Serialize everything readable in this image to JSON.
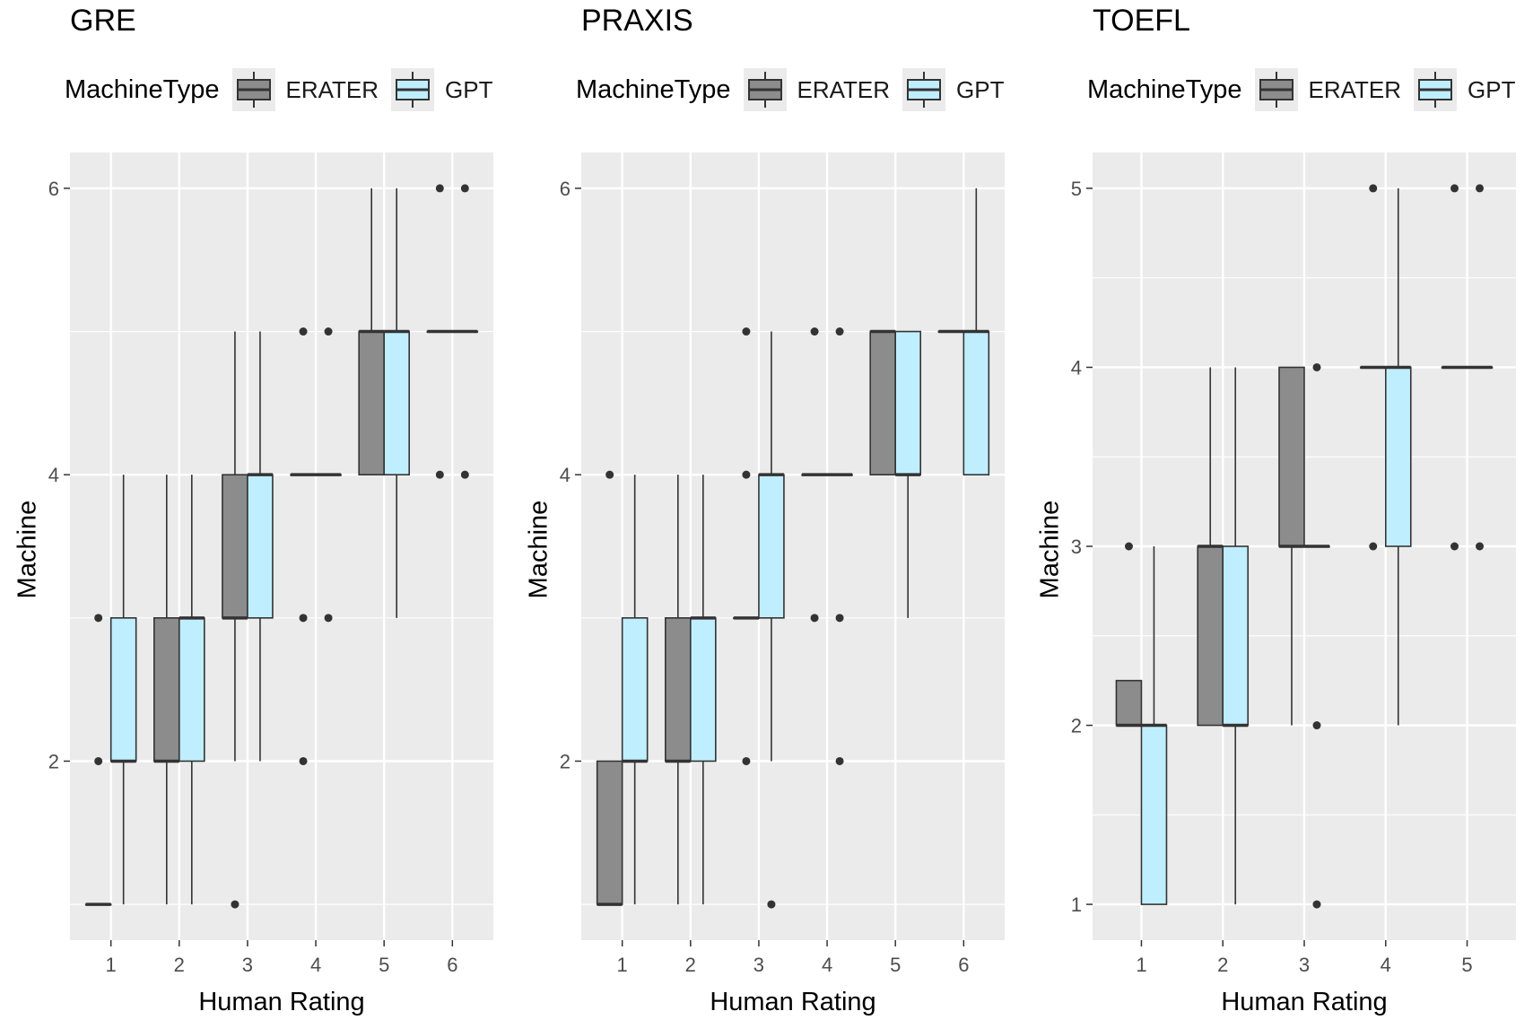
{
  "colors": {
    "erater": "#8c8c8c",
    "gpt": "#bfefff",
    "panel_bg": "#ebebeb",
    "grid": "#ffffff",
    "line": "#333333"
  },
  "icons": [
    "boxplot-key-icon"
  ],
  "panels": [
    {
      "title": "GRE",
      "legend": {
        "title": "MachineType",
        "items": [
          "ERATER",
          "GPT"
        ]
      },
      "xlabel": "Human Rating",
      "ylabel": "Machine",
      "x_ticks": [
        "1",
        "2",
        "3",
        "4",
        "5",
        "6"
      ],
      "y_ticks": [
        "2",
        "4",
        "6"
      ]
    },
    {
      "title": "PRAXIS",
      "legend": {
        "title": "MachineType",
        "items": [
          "ERATER",
          "GPT"
        ]
      },
      "xlabel": "Human Rating",
      "ylabel": "Machine",
      "x_ticks": [
        "1",
        "2",
        "3",
        "4",
        "5",
        "6"
      ],
      "y_ticks": [
        "2",
        "4",
        "6"
      ]
    },
    {
      "title": "TOEFL",
      "legend": {
        "title": "MachineType",
        "items": [
          "ERATER",
          "GPT"
        ]
      },
      "xlabel": "Human Rating",
      "ylabel": "Machine",
      "x_ticks": [
        "1",
        "2",
        "3",
        "4",
        "5"
      ],
      "y_ticks": [
        "1",
        "2",
        "3",
        "4",
        "5"
      ]
    }
  ],
  "chart_data": [
    {
      "type": "boxplot",
      "title": "GRE",
      "xlabel": "Human Rating",
      "ylabel": "Machine",
      "categories": [
        1,
        2,
        3,
        4,
        5,
        6
      ],
      "xlim": [
        0.4,
        6.6
      ],
      "ylim": [
        0.75,
        6.25
      ],
      "grid": true,
      "legend_position": "top",
      "series": [
        {
          "name": "ERATER",
          "boxes": [
            {
              "x": 1,
              "q1": 1,
              "median": 1,
              "q3": 1,
              "whisker_low": 1,
              "whisker_high": 1,
              "outliers": [
                2,
                3
              ]
            },
            {
              "x": 2,
              "q1": 2,
              "median": 2,
              "q3": 3,
              "whisker_low": 1,
              "whisker_high": 4,
              "outliers": []
            },
            {
              "x": 3,
              "q1": 3,
              "median": 3,
              "q3": 4,
              "whisker_low": 2,
              "whisker_high": 5,
              "outliers": [
                1
              ]
            },
            {
              "x": 4,
              "q1": 4,
              "median": 4,
              "q3": 4,
              "whisker_low": 4,
              "whisker_high": 4,
              "outliers": [
                2,
                3,
                5
              ]
            },
            {
              "x": 5,
              "q1": 4,
              "median": 5,
              "q3": 5,
              "whisker_low": 4,
              "whisker_high": 6,
              "outliers": []
            },
            {
              "x": 6,
              "q1": 5,
              "median": 5,
              "q3": 5,
              "whisker_low": 5,
              "whisker_high": 5,
              "outliers": [
                4,
                6
              ]
            }
          ]
        },
        {
          "name": "GPT",
          "boxes": [
            {
              "x": 1,
              "q1": 2,
              "median": 2,
              "q3": 3,
              "whisker_low": 1,
              "whisker_high": 4,
              "outliers": []
            },
            {
              "x": 2,
              "q1": 2,
              "median": 3,
              "q3": 3,
              "whisker_low": 1,
              "whisker_high": 4,
              "outliers": []
            },
            {
              "x": 3,
              "q1": 3,
              "median": 4,
              "q3": 4,
              "whisker_low": 2,
              "whisker_high": 5,
              "outliers": []
            },
            {
              "x": 4,
              "q1": 4,
              "median": 4,
              "q3": 4,
              "whisker_low": 4,
              "whisker_high": 4,
              "outliers": [
                3,
                5
              ]
            },
            {
              "x": 5,
              "q1": 4,
              "median": 5,
              "q3": 5,
              "whisker_low": 3,
              "whisker_high": 6,
              "outliers": []
            },
            {
              "x": 6,
              "q1": 5,
              "median": 5,
              "q3": 5,
              "whisker_low": 5,
              "whisker_high": 5,
              "outliers": [
                4,
                6
              ]
            }
          ]
        }
      ]
    },
    {
      "type": "boxplot",
      "title": "PRAXIS",
      "xlabel": "Human Rating",
      "ylabel": "Machine",
      "categories": [
        1,
        2,
        3,
        4,
        5,
        6
      ],
      "xlim": [
        0.4,
        6.6
      ],
      "ylim": [
        0.75,
        6.25
      ],
      "grid": true,
      "legend_position": "top",
      "series": [
        {
          "name": "ERATER",
          "boxes": [
            {
              "x": 1,
              "q1": 1,
              "median": 1,
              "q3": 2,
              "whisker_low": 1,
              "whisker_high": 2,
              "outliers": [
                4
              ]
            },
            {
              "x": 2,
              "q1": 2,
              "median": 2,
              "q3": 3,
              "whisker_low": 1,
              "whisker_high": 4,
              "outliers": []
            },
            {
              "x": 3,
              "q1": 3,
              "median": 3,
              "q3": 3,
              "whisker_low": 3,
              "whisker_high": 3,
              "outliers": [
                2,
                4,
                5
              ]
            },
            {
              "x": 4,
              "q1": 4,
              "median": 4,
              "q3": 4,
              "whisker_low": 4,
              "whisker_high": 4,
              "outliers": [
                3,
                5
              ]
            },
            {
              "x": 5,
              "q1": 4,
              "median": 5,
              "q3": 5,
              "whisker_low": 4,
              "whisker_high": 5,
              "outliers": []
            },
            {
              "x": 6,
              "q1": 5,
              "median": 5,
              "q3": 5,
              "whisker_low": 5,
              "whisker_high": 5,
              "outliers": []
            }
          ]
        },
        {
          "name": "GPT",
          "boxes": [
            {
              "x": 1,
              "q1": 2,
              "median": 2,
              "q3": 3,
              "whisker_low": 1,
              "whisker_high": 4,
              "outliers": []
            },
            {
              "x": 2,
              "q1": 2,
              "median": 3,
              "q3": 3,
              "whisker_low": 1,
              "whisker_high": 4,
              "outliers": []
            },
            {
              "x": 3,
              "q1": 3,
              "median": 4,
              "q3": 4,
              "whisker_low": 2,
              "whisker_high": 5,
              "outliers": [
                1
              ]
            },
            {
              "x": 4,
              "q1": 4,
              "median": 4,
              "q3": 4,
              "whisker_low": 4,
              "whisker_high": 4,
              "outliers": [
                2,
                3,
                5
              ]
            },
            {
              "x": 5,
              "q1": 4,
              "median": 4,
              "q3": 5,
              "whisker_low": 3,
              "whisker_high": 5,
              "outliers": []
            },
            {
              "x": 6,
              "q1": 4,
              "median": 5,
              "q3": 5,
              "whisker_low": 4,
              "whisker_high": 6,
              "outliers": []
            }
          ]
        }
      ]
    },
    {
      "type": "boxplot",
      "title": "TOEFL",
      "xlabel": "Human Rating",
      "ylabel": "Machine",
      "categories": [
        1,
        2,
        3,
        4,
        5
      ],
      "xlim": [
        0.4,
        5.6
      ],
      "ylim": [
        0.8,
        5.2
      ],
      "grid": true,
      "legend_position": "top",
      "series": [
        {
          "name": "ERATER",
          "boxes": [
            {
              "x": 1,
              "q1": 2,
              "median": 2,
              "q3": 2.25,
              "whisker_low": 2,
              "whisker_high": 2.25,
              "outliers": [
                3
              ]
            },
            {
              "x": 2,
              "q1": 2,
              "median": 3,
              "q3": 3,
              "whisker_low": 2,
              "whisker_high": 4,
              "outliers": []
            },
            {
              "x": 3,
              "q1": 3,
              "median": 3,
              "q3": 4,
              "whisker_low": 2,
              "whisker_high": 4,
              "outliers": []
            },
            {
              "x": 4,
              "q1": 4,
              "median": 4,
              "q3": 4,
              "whisker_low": 4,
              "whisker_high": 4,
              "outliers": [
                3,
                5
              ]
            },
            {
              "x": 5,
              "q1": 4,
              "median": 4,
              "q3": 4,
              "whisker_low": 4,
              "whisker_high": 4,
              "outliers": [
                3,
                5
              ]
            }
          ]
        },
        {
          "name": "GPT",
          "boxes": [
            {
              "x": 1,
              "q1": 1,
              "median": 2,
              "q3": 2,
              "whisker_low": 1,
              "whisker_high": 3,
              "outliers": []
            },
            {
              "x": 2,
              "q1": 2,
              "median": 2,
              "q3": 3,
              "whisker_low": 1,
              "whisker_high": 4,
              "outliers": []
            },
            {
              "x": 3,
              "q1": 3,
              "median": 3,
              "q3": 3,
              "whisker_low": 3,
              "whisker_high": 3,
              "outliers": [
                1,
                2,
                4
              ]
            },
            {
              "x": 4,
              "q1": 3,
              "median": 4,
              "q3": 4,
              "whisker_low": 2,
              "whisker_high": 5,
              "outliers": []
            },
            {
              "x": 5,
              "q1": 4,
              "median": 4,
              "q3": 4,
              "whisker_low": 4,
              "whisker_high": 4,
              "outliers": [
                3,
                5
              ]
            }
          ]
        }
      ]
    }
  ]
}
